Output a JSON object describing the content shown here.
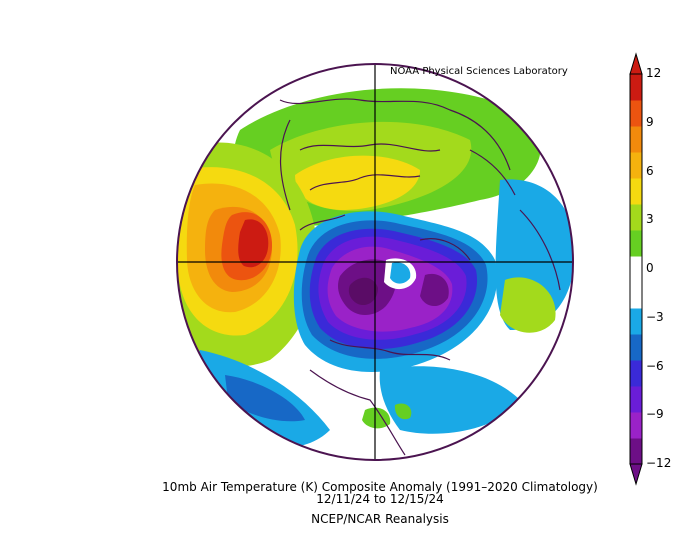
{
  "credit": "NOAA Physical Sciences Laboratory",
  "caption": {
    "title": "10mb Air Temperature (K) Composite Anomaly (1991–2020 Climatology)",
    "dates": "12/11/24   to 12/15/24",
    "source": "NCEP/NCAR Reanalysis"
  },
  "colorbar": {
    "labels": [
      "12",
      "9",
      "6",
      "3",
      "0",
      "−3",
      "−6",
      "−9",
      "−12"
    ],
    "colors": [
      "#6d0f86",
      "#9a22c8",
      "#6a1dd8",
      "#3a2ad8",
      "#1768c6",
      "#1aa9e6",
      "#ffffff",
      "#ffffff",
      "#66cf22",
      "#a3da1c",
      "#f5da10",
      "#f5b20e",
      "#f28a0c",
      "#ec5410",
      "#cc1b12"
    ]
  },
  "palette": {
    "background": "#ffffff",
    "outline": "#4b1450",
    "warm_core": "#cc1b12",
    "cold_core": "#5a0c66"
  }
}
